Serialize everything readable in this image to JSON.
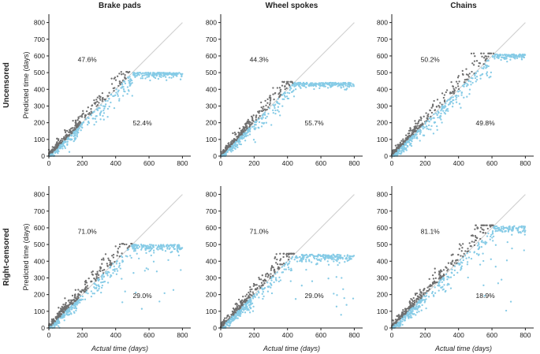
{
  "colors": {
    "over": "#6f6f6f",
    "under": "#86cbe6",
    "diagonal": "#cfcfcf",
    "axis": "#222222"
  },
  "chart_data": [
    {
      "type": "scatter",
      "title": "Brake pads",
      "row_label": "Uncensored",
      "xlabel": "",
      "ylabel": "Predicted time (days)",
      "xlim": [
        0,
        850
      ],
      "ylim": [
        0,
        850
      ],
      "plateau": 500,
      "pct_above": "47.6%",
      "pct_below": "52.4%",
      "xticks": [
        "0",
        "200",
        "400",
        "600",
        "800"
      ],
      "yticks": [
        "0",
        "100",
        "200",
        "300",
        "400",
        "500",
        "600",
        "700",
        "800"
      ]
    },
    {
      "type": "scatter",
      "title": "Wheel spokes",
      "row_label": "Uncensored",
      "xlabel": "",
      "ylabel": "",
      "xlim": [
        0,
        850
      ],
      "ylim": [
        0,
        850
      ],
      "plateau": 440,
      "pct_above": "44.3%",
      "pct_below": "55.7%",
      "xticks": [
        "0",
        "200",
        "400",
        "600",
        "800"
      ],
      "yticks": [
        "0",
        "100",
        "200",
        "300",
        "400",
        "500",
        "600",
        "700",
        "800"
      ]
    },
    {
      "type": "scatter",
      "title": "Chains",
      "row_label": "Uncensored",
      "xlabel": "",
      "ylabel": "",
      "xlim": [
        0,
        850
      ],
      "ylim": [
        0,
        850
      ],
      "plateau": 610,
      "pct_above": "50.2%",
      "pct_below": "49.8%",
      "xticks": [
        "0",
        "200",
        "400",
        "600",
        "800"
      ],
      "yticks": [
        "0",
        "100",
        "200",
        "300",
        "400",
        "500",
        "600",
        "700",
        "800"
      ]
    },
    {
      "type": "scatter",
      "title": "",
      "row_label": "Right-censored",
      "xlabel": "Actual time (days)",
      "ylabel": "Predicted time (days)",
      "xlim": [
        0,
        850
      ],
      "ylim": [
        0,
        850
      ],
      "plateau": 500,
      "pct_above": "71.0%",
      "pct_below": "29.0%",
      "xticks": [
        "0",
        "200",
        "400",
        "600",
        "800"
      ],
      "yticks": [
        "0",
        "100",
        "200",
        "300",
        "400",
        "500",
        "600",
        "700",
        "800"
      ]
    },
    {
      "type": "scatter",
      "title": "",
      "row_label": "Right-censored",
      "xlabel": "Actual time (days)",
      "ylabel": "",
      "xlim": [
        0,
        850
      ],
      "ylim": [
        0,
        850
      ],
      "plateau": 440,
      "pct_above": "71.0%",
      "pct_below": "29.0%",
      "xticks": [
        "0",
        "200",
        "400",
        "600",
        "800"
      ],
      "yticks": [
        "0",
        "100",
        "200",
        "300",
        "400",
        "500",
        "600",
        "700",
        "800"
      ]
    },
    {
      "type": "scatter",
      "title": "",
      "row_label": "Right-censored",
      "xlabel": "Actual time (days)",
      "ylabel": "",
      "xlim": [
        0,
        850
      ],
      "ylim": [
        0,
        850
      ],
      "plateau": 610,
      "pct_above": "81.1%",
      "pct_below": "18.9%",
      "xticks": [
        "0",
        "200",
        "400",
        "600",
        "800"
      ],
      "yticks": [
        "0",
        "100",
        "200",
        "300",
        "400",
        "500",
        "600",
        "700",
        "800"
      ]
    }
  ]
}
